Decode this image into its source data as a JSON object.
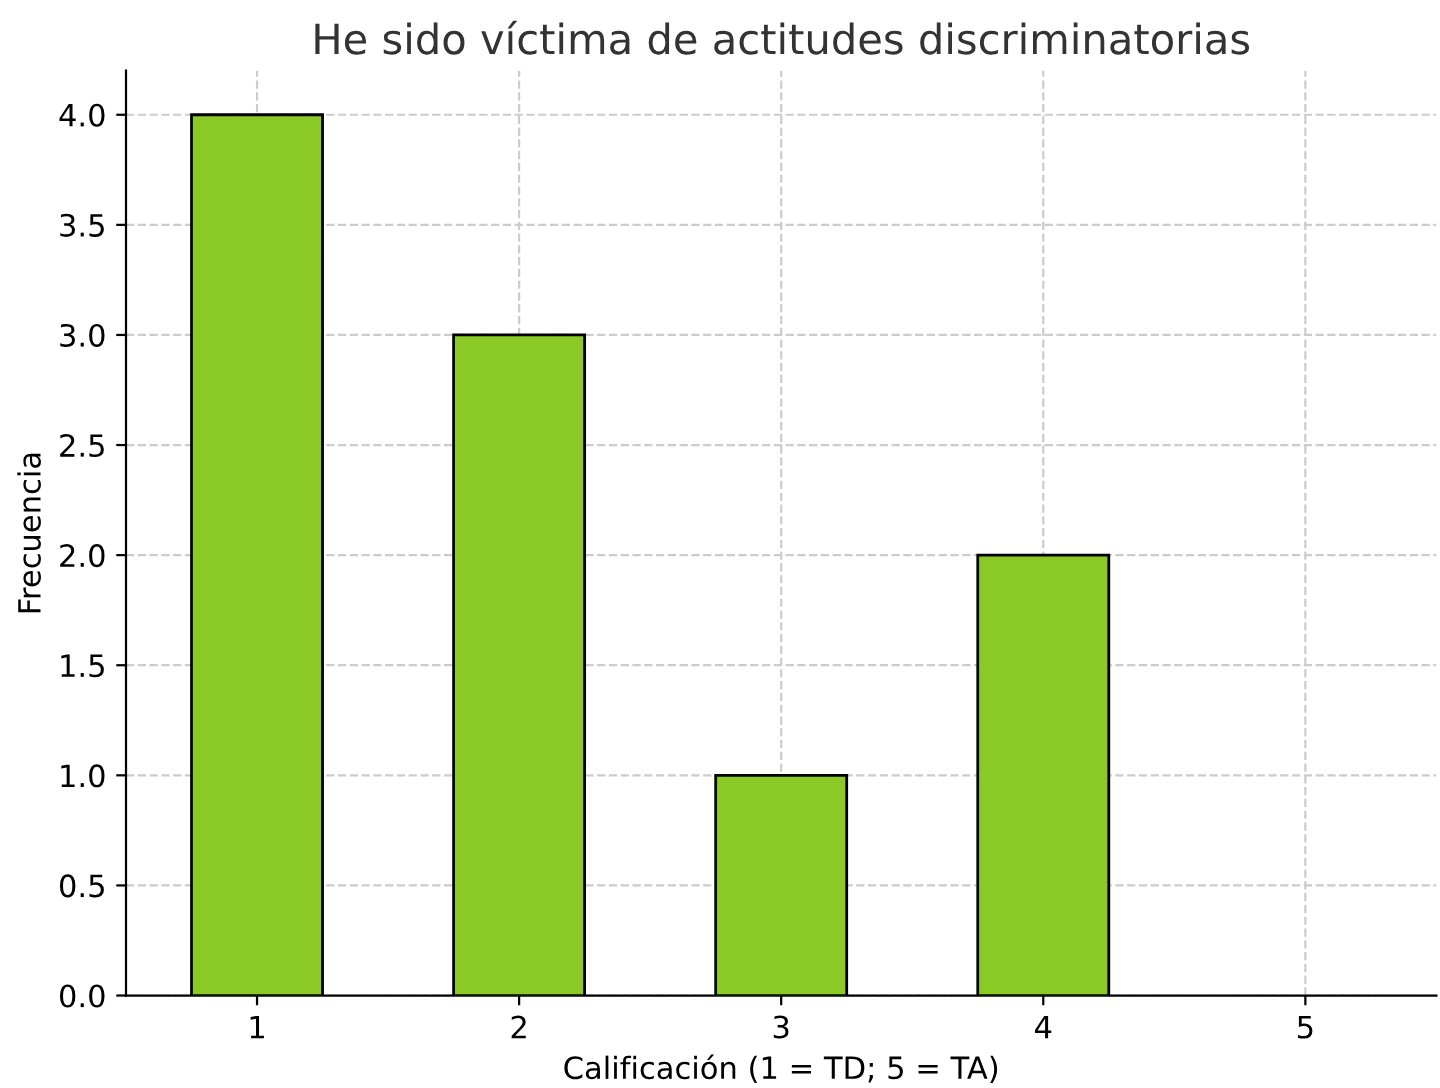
{
  "chart_data": {
    "type": "bar",
    "title": "He sido víctima de actitudes discriminatorias",
    "xlabel": "Calificación (1 = TD; 5 = TA)",
    "ylabel": "Frecuencia",
    "categories": [
      "1",
      "2",
      "3",
      "4",
      "5"
    ],
    "values": [
      4,
      3,
      1,
      2,
      0
    ],
    "color": "#8ac926",
    "ylim": [
      0,
      4.2
    ],
    "yticks": [
      {
        "value": 0,
        "label": "0.0"
      },
      {
        "value": 0.5,
        "label": "0.5"
      },
      {
        "value": 1,
        "label": "1.0"
      },
      {
        "value": 1.5,
        "label": "1.5"
      },
      {
        "value": 2,
        "label": "2.0"
      },
      {
        "value": 2.5,
        "label": "2.5"
      },
      {
        "value": 3,
        "label": "3.0"
      },
      {
        "value": 3.5,
        "label": "3.5"
      },
      {
        "value": 4,
        "label": "4.0"
      }
    ],
    "grid": true
  }
}
